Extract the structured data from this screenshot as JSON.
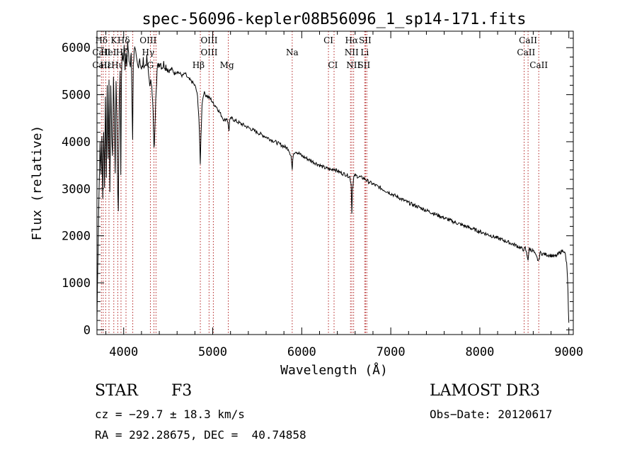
{
  "chart_data": {
    "type": "line",
    "title": "spec-56096-kepler08B56096_1_sp14-171.fits",
    "xlabel": "Wavelength (Å)",
    "ylabel": "Flux (relative)",
    "xlim": [
      3700,
      9050
    ],
    "ylim": [
      -100,
      6350
    ],
    "xticks": [
      4000,
      5000,
      6000,
      7000,
      8000,
      9000
    ],
    "yticks": [
      0,
      1000,
      2000,
      3000,
      4000,
      5000,
      6000
    ],
    "grid": false,
    "series": [
      {
        "name": "flux",
        "x": [
          3700,
          3705,
          3720,
          3735,
          3745,
          3755,
          3765,
          3775,
          3785,
          3795,
          3805,
          3815,
          3825,
          3835,
          3845,
          3855,
          3865,
          3875,
          3885,
          3895,
          3905,
          3915,
          3925,
          3933,
          3940,
          3950,
          3960,
          3968,
          3975,
          3985,
          3995,
          4005,
          4015,
          4025,
          4035,
          4045,
          4055,
          4065,
          4075,
          4085,
          4095,
          4101,
          4108,
          4118,
          4130,
          4145,
          4160,
          4180,
          4200,
          4220,
          4240,
          4260,
          4280,
          4300,
          4315,
          4330,
          4340,
          4350,
          4360,
          4375,
          4390,
          4410,
          4430,
          4450,
          4480,
          4510,
          4540,
          4570,
          4600,
          4630,
          4660,
          4690,
          4720,
          4750,
          4780,
          4810,
          4830,
          4845,
          4855,
          4861,
          4868,
          4880,
          4900,
          4920,
          4950,
          4980,
          5010,
          5040,
          5070,
          5100,
          5130,
          5160,
          5175,
          5183,
          5190,
          5210,
          5250,
          5300,
          5350,
          5400,
          5450,
          5500,
          5550,
          5600,
          5650,
          5700,
          5750,
          5800,
          5850,
          5880,
          5893,
          5905,
          5930,
          5970,
          6000,
          6050,
          6100,
          6150,
          6200,
          6250,
          6300,
          6330,
          6360,
          6400,
          6450,
          6500,
          6540,
          6555,
          6563,
          6570,
          6585,
          6600,
          6650,
          6700,
          6750,
          6800,
          6850,
          6900,
          6950,
          7000,
          7100,
          7200,
          7300,
          7400,
          7500,
          7600,
          7700,
          7800,
          7900,
          8000,
          8100,
          8200,
          8300,
          8400,
          8498,
          8510,
          8542,
          8555,
          8600,
          8662,
          8675,
          8700,
          8750,
          8800,
          8850,
          8900,
          8940,
          8960,
          8975,
          8985,
          8990,
          8995,
          9000
        ],
        "values": [
          200,
          900,
          2600,
          4000,
          3300,
          4200,
          2800,
          4300,
          3000,
          5000,
          3200,
          5200,
          3600,
          5300,
          3000,
          5100,
          4200,
          3600,
          5400,
          4500,
          3400,
          5300,
          4400,
          3000,
          2600,
          4800,
          5600,
          3200,
          5400,
          5900,
          5700,
          6000,
          5600,
          5900,
          5700,
          6100,
          5800,
          5700,
          5600,
          5900,
          4700,
          4100,
          5600,
          6000,
          5900,
          5700,
          5600,
          5800,
          5500,
          5700,
          5600,
          5750,
          5400,
          5200,
          5300,
          4600,
          3800,
          4200,
          5000,
          5500,
          5650,
          5700,
          5600,
          5650,
          5600,
          5500,
          5550,
          5450,
          5500,
          5450,
          5400,
          5450,
          5350,
          5300,
          5250,
          5150,
          4950,
          4500,
          3900,
          3550,
          4100,
          4800,
          5050,
          5000,
          4950,
          4900,
          4800,
          4750,
          4650,
          4550,
          4450,
          4500,
          4350,
          4250,
          4450,
          4500,
          4450,
          4400,
          4350,
          4300,
          4250,
          4200,
          4150,
          4100,
          4050,
          4000,
          3950,
          3900,
          3850,
          3700,
          3400,
          3750,
          3800,
          3750,
          3700,
          3650,
          3600,
          3550,
          3500,
          3450,
          3420,
          3400,
          3430,
          3380,
          3330,
          3300,
          3250,
          3100,
          2500,
          3000,
          3250,
          3280,
          3250,
          3220,
          3150,
          3100,
          3050,
          3000,
          2950,
          2900,
          2800,
          2700,
          2620,
          2540,
          2460,
          2380,
          2300,
          2230,
          2160,
          2090,
          2020,
          1950,
          1880,
          1800,
          1700,
          1740,
          1500,
          1720,
          1680,
          1450,
          1640,
          1620,
          1600,
          1580,
          1560,
          1640,
          1700,
          1600,
          1400,
          1100,
          800,
          400,
          150
        ]
      }
    ],
    "lines": [
      {
        "label": "Hδ",
        "x": 3750,
        "row": 0
      },
      {
        "label": "CaII",
        "x": 3750,
        "row": 1
      },
      {
        "label": "CaII",
        "x": 3750,
        "row": 2
      },
      {
        "label": "K",
        "x": 3890,
        "row": 0
      },
      {
        "label": "HeI",
        "x": 3830,
        "row": 1
      },
      {
        "label": "Hε",
        "x": 3800,
        "row": 2
      },
      {
        "label": "Hδ",
        "x": 4000,
        "row": 0
      },
      {
        "label": "Hζ",
        "x": 3980,
        "row": 1
      },
      {
        "label": "Hι",
        "x": 3920,
        "row": 2
      },
      {
        "label": "OIII",
        "x": 4275,
        "row": 0
      },
      {
        "label": "Hγ",
        "x": 4275,
        "row": 1
      },
      {
        "label": "G",
        "x": 4300,
        "row": 2
      },
      {
        "label": "Hβ",
        "x": 4840,
        "row": 2
      },
      {
        "label": "OIII",
        "x": 4960,
        "row": 0
      },
      {
        "label": "OIII",
        "x": 4960,
        "row": 1
      },
      {
        "label": "Mg",
        "x": 5160,
        "row": 2
      },
      {
        "label": "Na",
        "x": 5893,
        "row": 1
      },
      {
        "label": "CI",
        "x": 6300,
        "row": 0
      },
      {
        "label": "CI",
        "x": 6350,
        "row": 2
      },
      {
        "label": "Hα",
        "x": 6560,
        "row": 0
      },
      {
        "label": "SII",
        "x": 6712,
        "row": 0
      },
      {
        "label": "NII",
        "x": 6560,
        "row": 1
      },
      {
        "label": "Li",
        "x": 6707,
        "row": 1
      },
      {
        "label": "NII",
        "x": 6580,
        "row": 2
      },
      {
        "label": "SII",
        "x": 6700,
        "row": 2
      },
      {
        "label": "CaII",
        "x": 8542,
        "row": 0
      },
      {
        "label": "CaII",
        "x": 8520,
        "row": 1
      },
      {
        "label": "CaII",
        "x": 8662,
        "row": 2
      }
    ],
    "marker_x": [
      3750,
      3770,
      3798,
      3835,
      3889,
      3934,
      3970,
      4026,
      4102,
      4300,
      4340,
      4363,
      4861,
      4959,
      5007,
      5175,
      5893,
      6300,
      6363,
      6548,
      6563,
      6583,
      6707,
      6717,
      6731,
      8498,
      8542,
      8662
    ]
  },
  "info": {
    "object": "STAR",
    "subclass": "F3",
    "survey": "LAMOST DR3",
    "cz": "cz = −29.7 ± 18.3 km/s",
    "obs_date": "Obs−Date: 20120617",
    "coords": "RA = 292.28675, DEC =  40.74858"
  }
}
